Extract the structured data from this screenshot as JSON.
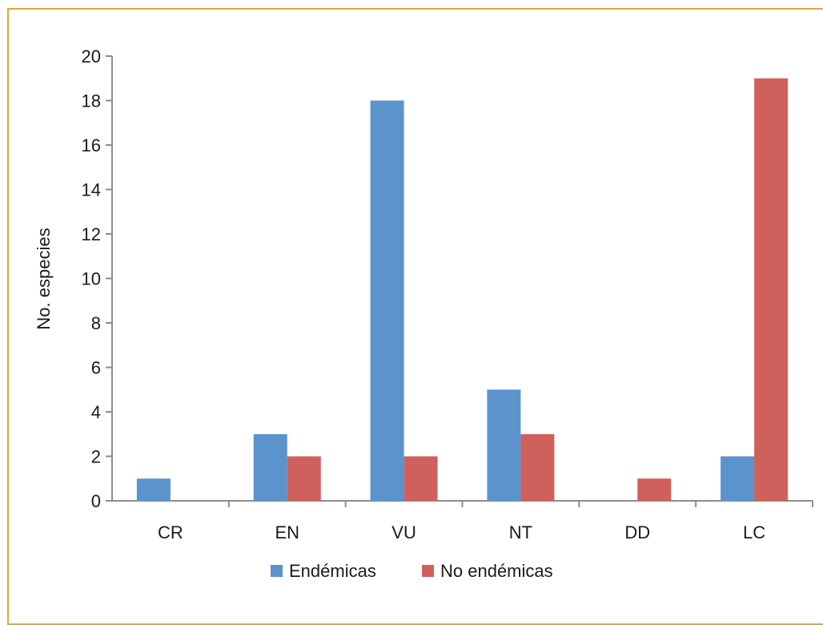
{
  "chart_data": {
    "type": "bar",
    "categories": [
      "CR",
      "EN",
      "VU",
      "NT",
      "DD",
      "LC"
    ],
    "series": [
      {
        "name": "Endémicas",
        "values": [
          1,
          3,
          18,
          5,
          0,
          2
        ],
        "color": "#5b93cc"
      },
      {
        "name": "No endémicas",
        "values": [
          0,
          2,
          2,
          3,
          1,
          19
        ],
        "color": "#d0605b"
      }
    ],
    "ylabel": "No. especies",
    "xlabel": "",
    "ylim": [
      0,
      20
    ],
    "yticks": [
      "0",
      "2",
      "4",
      "6",
      "8",
      "10",
      "12",
      "14",
      "16",
      "18",
      "20"
    ],
    "grid": false,
    "legend_position": "bottom"
  },
  "colors": {
    "frame": "#e0a43c",
    "axis": "#8c8c8c"
  }
}
